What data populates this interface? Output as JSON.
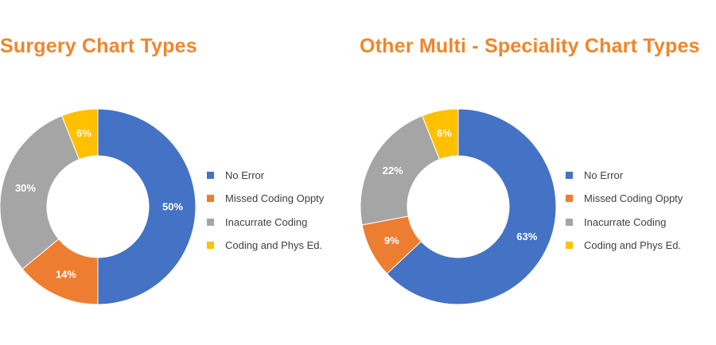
{
  "colors": {
    "title": "#F0862A",
    "no_error": "#4472C4",
    "missed": "#ED7D31",
    "inaccurate": "#A5A5A5",
    "coding_phys": "#FFC000"
  },
  "chart_data": [
    {
      "type": "pie",
      "title": "Surgery Chart Types",
      "categories": [
        "No Error",
        "Missed Coding Oppty",
        "Inacurrate Coding",
        "Coding and Phys Ed."
      ],
      "values": [
        50,
        14,
        30,
        6
      ],
      "labels": [
        "50%",
        "14%",
        "30%",
        "6%"
      ],
      "legend_position": "right"
    },
    {
      "type": "pie",
      "title": "Other Multi - Speciality Chart Types",
      "categories": [
        "No Error",
        "Missed Coding Oppty",
        "Inacurrate Coding",
        "Coding and Phys Ed."
      ],
      "values": [
        63,
        9,
        22,
        6
      ],
      "labels": [
        "63%",
        "9%",
        "22%",
        "6%"
      ],
      "legend_position": "right"
    }
  ]
}
